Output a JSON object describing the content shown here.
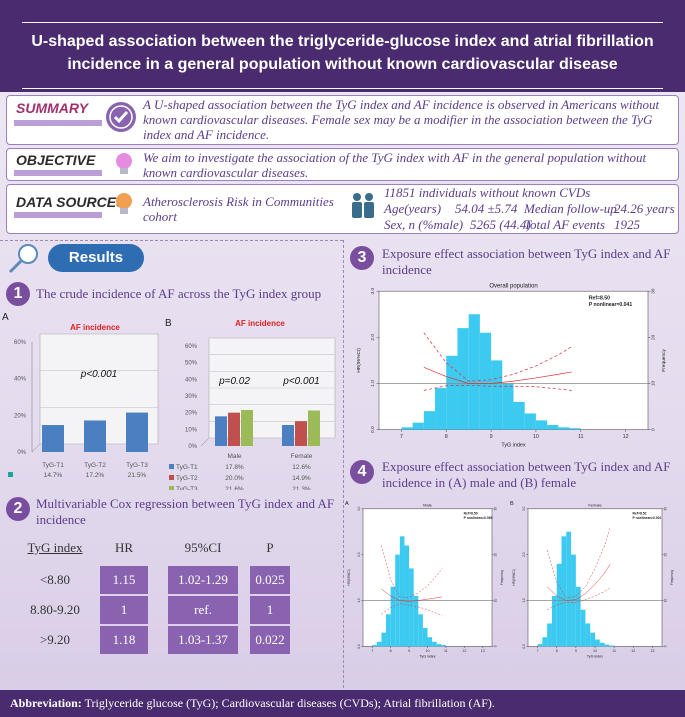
{
  "header": {
    "title": "U-shaped association between the triglyceride-glucose index and atrial fibrillation incidence in a general population without known cardiovascular disease"
  },
  "summary": {
    "label": "SUMMARY",
    "text": "A U-shaped association between the TyG index and AF incidence is observed in Americans without known cardiovascular diseases. Female sex may be a modifier in the association between the TyG index and AF incidence."
  },
  "objective": {
    "label": "OBJECTIVE",
    "text": "We aim to investigate the association of the TyG index with AF in the general population without known cardiovascular diseases."
  },
  "data_sources": {
    "label": "DATA SOURCES",
    "source": "Atherosclerosis Risk in Communities cohort",
    "population": "11851 individuals without known CVDs",
    "stats": [
      {
        "label": "Age(years)",
        "value": "54.04 ±5.74"
      },
      {
        "label": "Median follow-up",
        "value": "24.26 years"
      },
      {
        "label": "Sex, n (%male)",
        "value": "5265 (44.4)"
      },
      {
        "label": "Total AF events",
        "value": "1925"
      }
    ]
  },
  "results": {
    "label": "Results"
  },
  "sections": [
    {
      "number": "1",
      "title": "The crude incidence of AF across the TyG index group"
    },
    {
      "number": "2",
      "title": "Multivariable Cox regression between TyG index and AF incidence"
    },
    {
      "number": "3",
      "title": "Exposure effect association between TyG index and AF incidence"
    },
    {
      "number": "4",
      "title": "Exposure effect association between TyG index and AF incidence in (A) male and (B) female"
    }
  ],
  "table": {
    "headers": [
      "TyG index",
      "HR",
      "95%CI",
      "P"
    ],
    "rows": [
      [
        "<8.80",
        "1.15",
        "1.02-1.29",
        "0.025"
      ],
      [
        "8.80-9.20",
        "1",
        "ref.",
        "1"
      ],
      [
        ">9.20",
        "1.18",
        "1.03-1.37",
        "0.022"
      ]
    ]
  },
  "footer": {
    "label": "Abbreviation:",
    "text": "Triglyceride glucose (TyG); Cardiovascular diseases (CVDs); Atrial fibrillation (AF)."
  },
  "chart_data": [
    {
      "type": "bar",
      "panel_label": "A",
      "title": "AF incidence",
      "annotation": "p<0.001",
      "categories": [
        "TyG-T1",
        "TyG-T2",
        "TyG-T3"
      ],
      "values": [
        14.7,
        17.2,
        21.5
      ],
      "value_labels": [
        "14.7%",
        "17.2%",
        "21.5%"
      ],
      "color": "#4a7fc1",
      "ylim": [
        0,
        60
      ],
      "yticks": [
        {
          "value": 0,
          "label": "0%"
        },
        {
          "value": 20,
          "label": "20%"
        },
        {
          "value": 40,
          "label": "40%"
        },
        {
          "value": 60,
          "label": "60%"
        }
      ],
      "grid": true
    },
    {
      "type": "grouped_bar",
      "panel_label": "B",
      "title": "AF incidence",
      "category_annotations": [
        "p=0.02",
        "p<0.001"
      ],
      "categories": [
        "Male",
        "Female"
      ],
      "series": [
        {
          "name": "TyG-T1",
          "color": "#4a7fc1",
          "values": [
            17.8,
            12.6
          ],
          "value_labels": [
            "17.8%",
            "12.6%"
          ]
        },
        {
          "name": "TyG-T2",
          "color": "#c0504d",
          "values": [
            20.0,
            14.9
          ],
          "value_labels": [
            "20.0%",
            "14.9%"
          ]
        },
        {
          "name": "TyG-T3",
          "color": "#9bbb59",
          "values": [
            21.6,
            21.3
          ],
          "value_labels": [
            "21.6%",
            "21.3%"
          ]
        }
      ],
      "ylim": [
        0,
        60
      ],
      "yticks": [
        {
          "value": 0,
          "label": "0%"
        },
        {
          "value": 10,
          "label": "10%"
        },
        {
          "value": 20,
          "label": "20%"
        },
        {
          "value": 30,
          "label": "30%"
        },
        {
          "value": 40,
          "label": "40%"
        },
        {
          "value": 50,
          "label": "50%"
        },
        {
          "value": 60,
          "label": "60%"
        }
      ],
      "grid": true
    },
    {
      "type": "line",
      "title": "Overall population",
      "xlabel": "TyG index",
      "ylabel": "HR(95%CI)",
      "y2label": "Frequency",
      "annotations": [
        "Ref=8.50",
        "P nonlinear=0.041"
      ],
      "ref_line": 1,
      "x": [
        7.5,
        8.0,
        8.5,
        9.0,
        9.5,
        10.0,
        10.5,
        10.8
      ],
      "series": [
        {
          "color": "#e03030",
          "dash": false,
          "values": [
            1.35,
            1.15,
            1.0,
            1.0,
            1.05,
            1.12,
            1.2,
            1.25
          ]
        },
        {
          "color": "#e03030",
          "dash": true,
          "values": [
            0.85,
            0.95,
            0.96,
            0.94,
            0.94,
            0.93,
            0.88,
            0.85
          ]
        },
        {
          "color": "#e03030",
          "dash": true,
          "values": [
            2.1,
            1.45,
            1.05,
            1.08,
            1.2,
            1.38,
            1.62,
            1.8
          ]
        }
      ],
      "histogram": {
        "color": "#3ccaf0",
        "bins": [
          7.0,
          7.25,
          7.5,
          7.75,
          8.0,
          8.25,
          8.5,
          8.75,
          9.0,
          9.25,
          9.5,
          9.75,
          10.0,
          10.25,
          10.5,
          10.75,
          11.0
        ],
        "counts": [
          0.5,
          1.5,
          4,
          9,
          16,
          22,
          25,
          21,
          15,
          10,
          6,
          3.5,
          2,
          1,
          0.5,
          0.3
        ]
      },
      "xlim": [
        6.5,
        12.5
      ],
      "xticks": [
        7,
        8,
        9,
        10,
        11,
        12
      ],
      "ylim": [
        0,
        3
      ],
      "yticks": [
        {
          "value": 0,
          "label": "0.0"
        },
        {
          "value": 1,
          "label": "1.0"
        },
        {
          "value": 2,
          "label": "2.0"
        },
        {
          "value": 3,
          "label": "3.0"
        }
      ],
      "y2lim": [
        0,
        30
      ],
      "y2ticks": [
        0,
        10,
        20,
        30
      ]
    },
    {
      "type": "line",
      "panel_label": "A",
      "title": "Male",
      "xlabel": "TyG index",
      "ylabel": "HR(95%CI)",
      "y2label": "Frequency",
      "annotations": [
        "Ref=8.50",
        "P nonlinear=0.069"
      ],
      "ref_line": 1,
      "x": [
        7.5,
        8.0,
        8.5,
        9.0,
        9.5,
        10.0,
        10.5,
        10.8
      ],
      "series": [
        {
          "color": "#e03030",
          "dash": false,
          "values": [
            1.25,
            1.1,
            1.0,
            0.98,
            1.0,
            1.03,
            1.06,
            1.08
          ]
        },
        {
          "color": "#e03030",
          "dash": true,
          "values": [
            0.7,
            0.85,
            0.93,
            0.9,
            0.86,
            0.8,
            0.72,
            0.68
          ]
        },
        {
          "color": "#e03030",
          "dash": true,
          "values": [
            2.2,
            1.45,
            1.08,
            1.07,
            1.17,
            1.32,
            1.55,
            1.7
          ]
        }
      ],
      "histogram": {
        "color": "#3ccaf0",
        "bins": [
          7.0,
          7.25,
          7.5,
          7.75,
          8.0,
          8.25,
          8.5,
          8.75,
          9.0,
          9.25,
          9.5,
          9.75,
          10.0,
          10.25,
          10.5,
          10.75,
          11.0
        ],
        "counts": [
          0.3,
          1,
          3,
          7,
          13,
          20,
          24,
          22,
          17,
          11,
          7,
          4,
          2,
          1,
          0.5,
          0.3
        ]
      },
      "xlim": [
        6.5,
        13.5
      ],
      "xticks": [
        7,
        8,
        9,
        10,
        11,
        12,
        13
      ],
      "ylim": [
        0,
        3
      ],
      "yticks": [
        {
          "value": 0,
          "label": "0.0"
        },
        {
          "value": 1,
          "label": "1.0"
        },
        {
          "value": 2,
          "label": "2.0"
        },
        {
          "value": 3,
          "label": "3.0"
        }
      ],
      "y2lim": [
        0,
        30
      ],
      "y2ticks": [
        0,
        10,
        20,
        30
      ]
    },
    {
      "type": "line",
      "panel_label": "B",
      "title": "Female",
      "xlabel": "TyG index",
      "ylabel": "HR(95%CI)",
      "y2label": "Frequency",
      "annotations": [
        "Ref=8.52",
        "P nonlinear=0.001"
      ],
      "ref_line": 1,
      "x": [
        7.5,
        8.0,
        8.5,
        9.0,
        9.5,
        10.0,
        10.5,
        10.8
      ],
      "series": [
        {
          "color": "#e03030",
          "dash": false,
          "values": [
            1.3,
            1.1,
            1.0,
            1.02,
            1.15,
            1.35,
            1.6,
            1.8
          ]
        },
        {
          "color": "#e03030",
          "dash": true,
          "values": [
            0.8,
            0.9,
            0.96,
            0.95,
            1.02,
            1.1,
            1.2,
            1.28
          ]
        },
        {
          "color": "#e03030",
          "dash": true,
          "values": [
            2.1,
            1.4,
            1.05,
            1.1,
            1.3,
            1.7,
            2.2,
            2.6
          ]
        }
      ],
      "histogram": {
        "color": "#3ccaf0",
        "bins": [
          7.0,
          7.25,
          7.5,
          7.75,
          8.0,
          8.25,
          8.5,
          8.75,
          9.0,
          9.25,
          9.5,
          9.75,
          10.0,
          10.25,
          10.5,
          10.75,
          11.0
        ],
        "counts": [
          0.5,
          2,
          5,
          11,
          18,
          24,
          25,
          20,
          13,
          8,
          5,
          3,
          1.5,
          0.8,
          0.4,
          0.2
        ]
      },
      "xlim": [
        6.5,
        13.5
      ],
      "xticks": [
        7,
        8,
        9,
        10,
        11,
        12,
        13
      ],
      "ylim": [
        0,
        3
      ],
      "yticks": [
        {
          "value": 0,
          "label": "0.0"
        },
        {
          "value": 1,
          "label": "1.0"
        },
        {
          "value": 2,
          "label": "2.0"
        },
        {
          "value": 3,
          "label": "3.0"
        }
      ],
      "y2lim": [
        0,
        30
      ],
      "y2ticks": [
        0,
        10,
        20,
        30
      ]
    }
  ]
}
